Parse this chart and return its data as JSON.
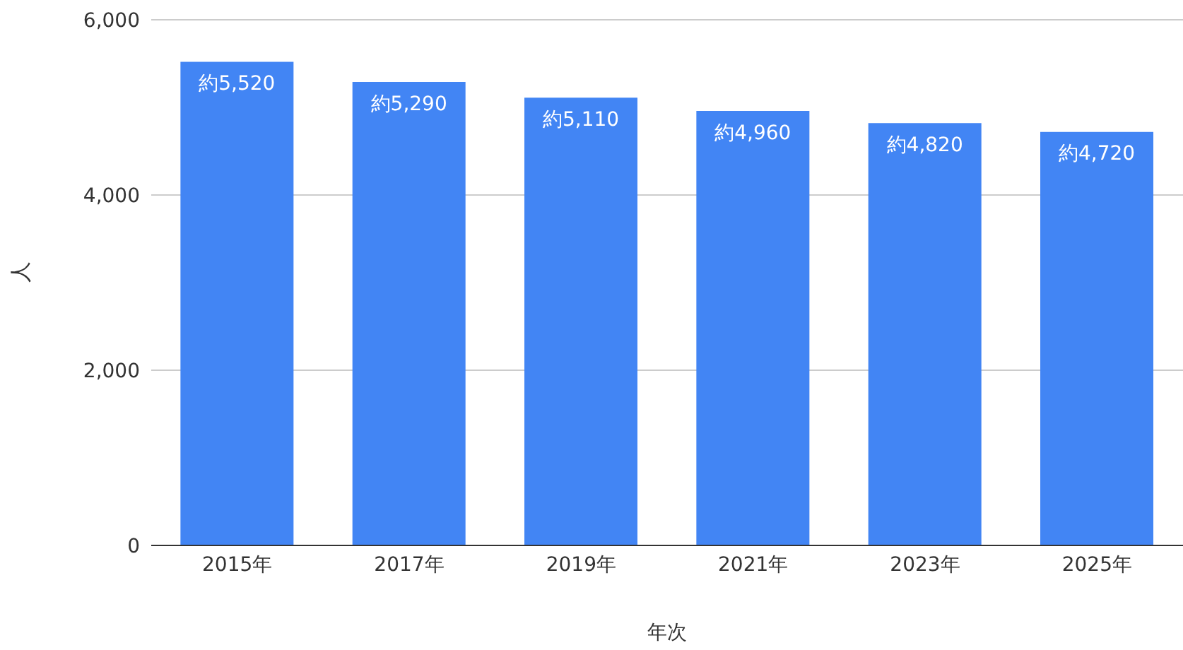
{
  "chart_data": {
    "type": "bar",
    "xlabel": "年次",
    "ylabel": "人",
    "categories": [
      "2015年",
      "2017年",
      "2019年",
      "2021年",
      "2023年",
      "2025年"
    ],
    "values": [
      5520,
      5290,
      5110,
      4960,
      4820,
      4720
    ],
    "value_labels": [
      "約5,520",
      "約5,290",
      "約5,110",
      "約4,960",
      "約4,820",
      "約4,720"
    ],
    "color": "#4285f4",
    "ylim": [
      0,
      6000
    ],
    "yticks": [
      0,
      {
        "value": 2000,
        "label": "2,000"
      },
      {
        "value": 4000,
        "label": "4,000"
      },
      {
        "value": 6000,
        "label": "6,000"
      }
    ],
    "grid": "y"
  }
}
